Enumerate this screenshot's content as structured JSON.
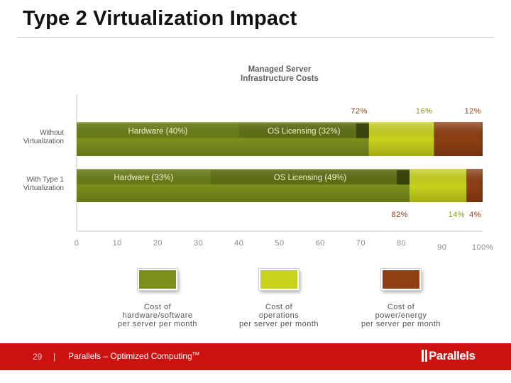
{
  "slide": {
    "title": "Type 2 Virtualization Impact",
    "footer": {
      "page_number": "29",
      "separator": "|",
      "tagline": "Parallels – Optimized Computing",
      "tagline_mark": "TM",
      "logo_text": "Parallels"
    }
  },
  "colors": {
    "hardware_software": "#7b8f1c",
    "operations": "#c8d21d",
    "power_energy": "#8e3f13"
  },
  "chart_data": {
    "type": "bar",
    "orientation": "horizontal",
    "stacked": true,
    "title": "Managed Server Infrastructure Costs",
    "categories": [
      "Without Virtualization",
      "With Type 1 Virtualization"
    ],
    "x_ticks": [
      "0",
      "10",
      "20",
      "30",
      "40",
      "50",
      "60",
      "70",
      "80",
      "90",
      "100%"
    ],
    "xlim": [
      0,
      100
    ],
    "grid": false,
    "legend_position": "bottom",
    "series": [
      {
        "name": "Cost of hardware/software per server per month",
        "values": [
          72,
          82
        ],
        "segment_labels": [
          "72%",
          "82%"
        ]
      },
      {
        "name": "Cost of operations per server per month",
        "values": [
          16,
          14
        ],
        "segment_labels": [
          "16%",
          "14%"
        ]
      },
      {
        "name": "Cost of power/energy per server per month",
        "values": [
          12,
          4
        ],
        "segment_labels": [
          "12%",
          "4%"
        ]
      }
    ],
    "sub_segments": [
      [
        {
          "label": "Hardware",
          "value_text": "40%",
          "value": 40
        },
        {
          "label": "OS Licensing",
          "value_text": "32%",
          "value": 32
        }
      ],
      [
        {
          "label": "Hardware",
          "value_text": "33%",
          "value": 33
        },
        {
          "label": "OS Licensing",
          "value_text": "49%",
          "value": 49
        }
      ]
    ],
    "legend": [
      {
        "line1": "Cost of",
        "line2": "hardware/software",
        "line3": "per server per month"
      },
      {
        "line1": "Cost of",
        "line2": "operations",
        "line3": "per server per month"
      },
      {
        "line1": "Cost of",
        "line2": "power/energy",
        "line3": "per server per month"
      }
    ],
    "row_labels": [
      {
        "line1": "Without",
        "line2": "Virtualization"
      },
      {
        "line1": "With Type 1",
        "line2": "Virtualization"
      }
    ]
  }
}
